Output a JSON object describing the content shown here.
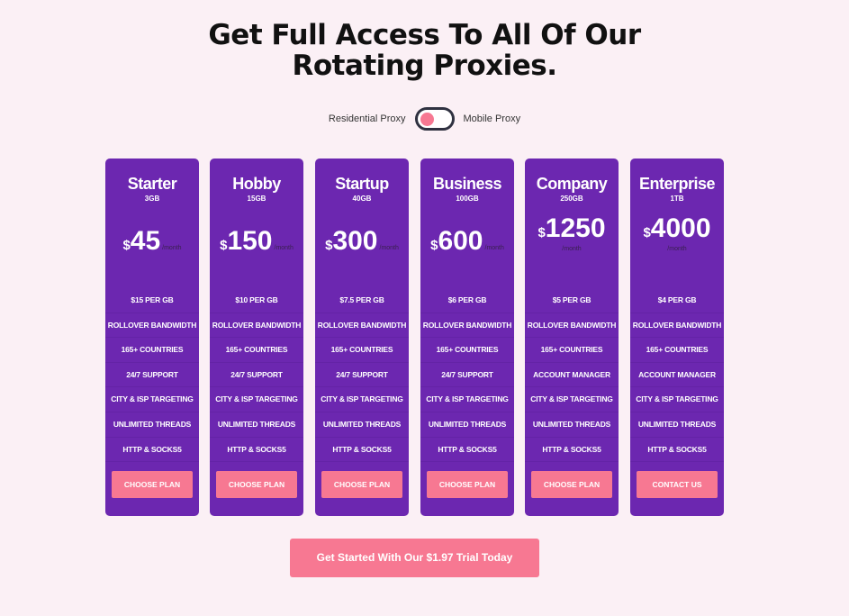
{
  "title_line1": "Get Full Access To All Of Our",
  "title_line2": "Rotating Proxies.",
  "toggle": {
    "left_label": "Residential Proxy",
    "right_label": "Mobile Proxy",
    "state": "residential"
  },
  "currency": "$",
  "per_label": "/month",
  "plans": [
    {
      "name": "Starter",
      "data": "3GB",
      "price": "45",
      "features": [
        "$15 PER GB",
        "ROLLOVER BANDWIDTH",
        "165+ COUNTRIES",
        "24/7 SUPPORT",
        "CITY & ISP TARGETING",
        "UNLIMITED THREADS",
        "HTTP & SOCKS5"
      ],
      "button": "CHOOSE PLAN"
    },
    {
      "name": "Hobby",
      "data": "15GB",
      "price": "150",
      "features": [
        "$10 PER GB",
        "ROLLOVER BANDWIDTH",
        "165+ COUNTRIES",
        "24/7 SUPPORT",
        "CITY & ISP TARGETING",
        "UNLIMITED THREADS",
        "HTTP & SOCKS5"
      ],
      "button": "CHOOSE PLAN"
    },
    {
      "name": "Startup",
      "data": "40GB",
      "price": "300",
      "features": [
        "$7.5 PER GB",
        "ROLLOVER BANDWIDTH",
        "165+ COUNTRIES",
        "24/7 SUPPORT",
        "CITY & ISP TARGETING",
        "UNLIMITED THREADS",
        "HTTP & SOCKS5"
      ],
      "button": "CHOOSE PLAN"
    },
    {
      "name": "Business",
      "data": "100GB",
      "price": "600",
      "features": [
        "$6 PER GB",
        "ROLLOVER BANDWIDTH",
        "165+ COUNTRIES",
        "24/7 SUPPORT",
        "CITY & ISP TARGETING",
        "UNLIMITED THREADS",
        "HTTP & SOCKS5"
      ],
      "button": "CHOOSE PLAN"
    },
    {
      "name": "Company",
      "data": "250GB",
      "price": "1250",
      "features": [
        "$5 PER GB",
        "ROLLOVER BANDWIDTH",
        "165+ COUNTRIES",
        "ACCOUNT MANAGER",
        "CITY & ISP TARGETING",
        "UNLIMITED THREADS",
        "HTTP & SOCKS5"
      ],
      "button": "CHOOSE PLAN"
    },
    {
      "name": "Enterprise",
      "data": "1TB",
      "price": "4000",
      "features": [
        "$4 PER GB",
        "ROLLOVER BANDWIDTH",
        "165+ COUNTRIES",
        "ACCOUNT MANAGER",
        "CITY & ISP TARGETING",
        "UNLIMITED THREADS",
        "HTTP & SOCKS5"
      ],
      "button": "CONTACT US"
    }
  ],
  "cta": "Get Started With Our $1.97 Trial Today",
  "colors": {
    "background": "#fbf0f5",
    "card": "#6c27b0",
    "accent": "#f77892"
  }
}
